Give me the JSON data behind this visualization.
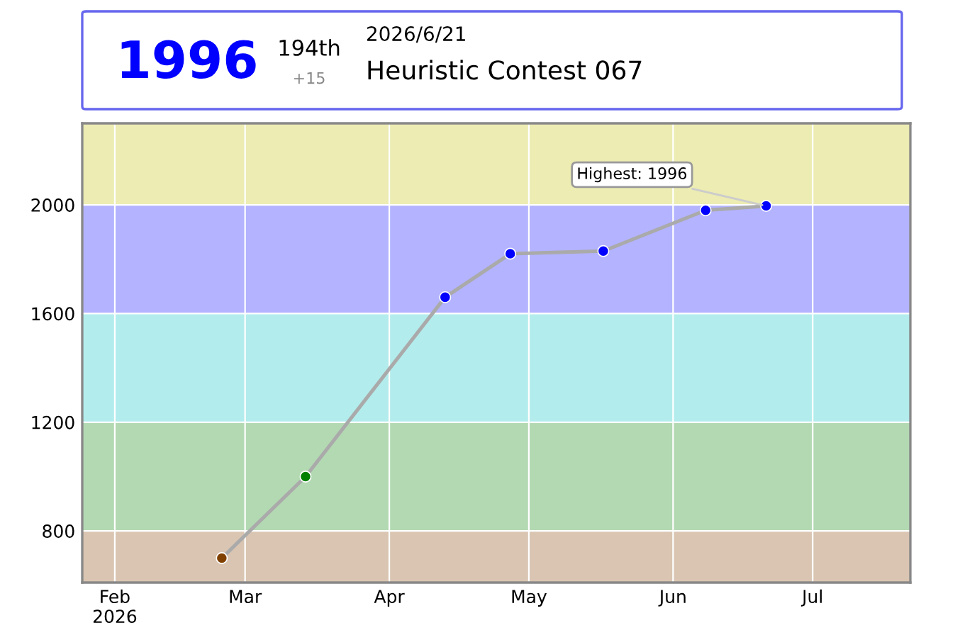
{
  "chart_data": {
    "type": "line",
    "x": [
      "2026-02-24",
      "2026-03-14",
      "2026-04-13",
      "2026-04-27",
      "2026-05-17",
      "2026-06-08",
      "2026-06-21"
    ],
    "series": [
      {
        "color": "#aaaaaa",
        "colors": [
          "#804000",
          "#008000",
          "#0000ff",
          "#0000ff",
          "#0000ff",
          "#0000ff",
          "#0000ff"
        ],
        "values": [
          700,
          1000,
          1660,
          1820,
          1830,
          1980,
          1996
        ]
      }
    ],
    "xlim": [
      "2026-01-25",
      "2026-07-22"
    ],
    "xticks": [
      {
        "value": "2026-02-01",
        "label": "Feb\n2026"
      },
      {
        "value": "2026-03-01",
        "label": "Mar"
      },
      {
        "value": "2026-04-01",
        "label": "Apr"
      },
      {
        "value": "2026-05-01",
        "label": "May"
      },
      {
        "value": "2026-06-01",
        "label": "Jun"
      },
      {
        "value": "2026-07-01",
        "label": "Jul"
      }
    ],
    "ylim": [
      610,
      2300
    ],
    "yticks": [
      800,
      1200,
      1600,
      2000
    ],
    "bands": [
      {
        "axis": "y",
        "from": 400,
        "to": 800,
        "color": "#d9c5b2"
      },
      {
        "axis": "y",
        "from": 800,
        "to": 1200,
        "color": "#b3d9b3"
      },
      {
        "axis": "y",
        "from": 1200,
        "to": 1600,
        "color": "#b3ecec"
      },
      {
        "axis": "y",
        "from": 1600,
        "to": 2000,
        "color": "#b3b3ff"
      },
      {
        "axis": "y",
        "from": 2000,
        "to": 2400,
        "color": "#ececb3"
      }
    ],
    "grid": true,
    "marker": "circle",
    "line_style": "solid",
    "annotations": [
      "1996",
      "194th",
      "+15",
      "2026/6/21",
      "Heuristic Contest 067",
      {
        "text": "Highest: 1996",
        "x": "2026-06-21",
        "y": 1996
      }
    ]
  }
}
